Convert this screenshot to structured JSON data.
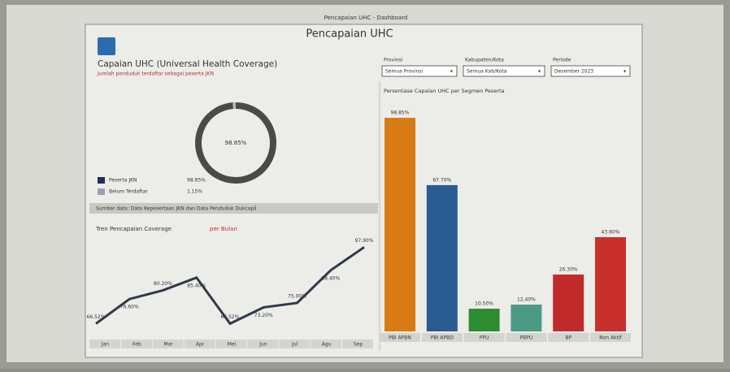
{
  "header": {
    "window_title": "Pencapaian UHC - Dashboard",
    "title": "Pencapaian UHC",
    "heading": "Capaian UHC (Universal Health Coverage)",
    "subheading": "Jumlah penduduk terdaftar sebagai peserta JKN"
  },
  "filters": [
    {
      "label": "Provinsi",
      "value": "Semua Provinsi"
    },
    {
      "label": "Kabupaten/Kota",
      "value": "Semua Kab/Kota"
    },
    {
      "label": "Periode",
      "value": "Desember 2023"
    }
  ],
  "strip_text": "Sumber data: Data Kepesertaan JKN dan Data Penduduk Dukcapil",
  "chart_data": [
    {
      "type": "pie",
      "categories": [
        "Peserta JKN",
        "Belum Terdaftar"
      ],
      "values": [
        98.85,
        1.15
      ],
      "value_labels": [
        "98.85%",
        "1.15%"
      ],
      "colors": [
        "#4a4a4a",
        "#b8b8b8"
      ]
    },
    {
      "type": "line",
      "title": "Tren Pencapaian Coverage",
      "title_highlight": "per Bulan",
      "categories": [
        "Jan",
        "Feb",
        "Mar",
        "Apr",
        "Mei",
        "Jun",
        "Jul",
        "Agu",
        "Sep"
      ],
      "values": [
        66.52,
        76.6,
        80.2,
        85.4,
        66.52,
        73.2,
        75.0,
        88.4,
        97.9
      ],
      "value_labels": [
        "66.52%",
        "76.60%",
        "80.20%",
        "85.40%",
        "66.52%",
        "73.20%",
        "75.00%",
        "88.40%",
        "97.90%"
      ],
      "color": "#2f3a4a",
      "ylim": [
        62,
        100
      ]
    },
    {
      "type": "bar",
      "title": "Persentase Capaian UHC per Segmen Peserta",
      "categories": [
        "PBI APBN",
        "PBI APBD",
        "PPU",
        "PBPU",
        "BP",
        "Non Aktif"
      ],
      "values": [
        98.85,
        67.7,
        10.5,
        12.4,
        26.3,
        43.6
      ],
      "value_labels": [
        "98.85%",
        "67.70%",
        "10.50%",
        "12.40%",
        "26.30%",
        "43.60%"
      ],
      "colors": [
        "#d97a12",
        "#2b5b93",
        "#2e8b2e",
        "#4a9a86",
        "#c02a2a",
        "#c9302c"
      ],
      "ylim": [
        0,
        100
      ]
    }
  ]
}
